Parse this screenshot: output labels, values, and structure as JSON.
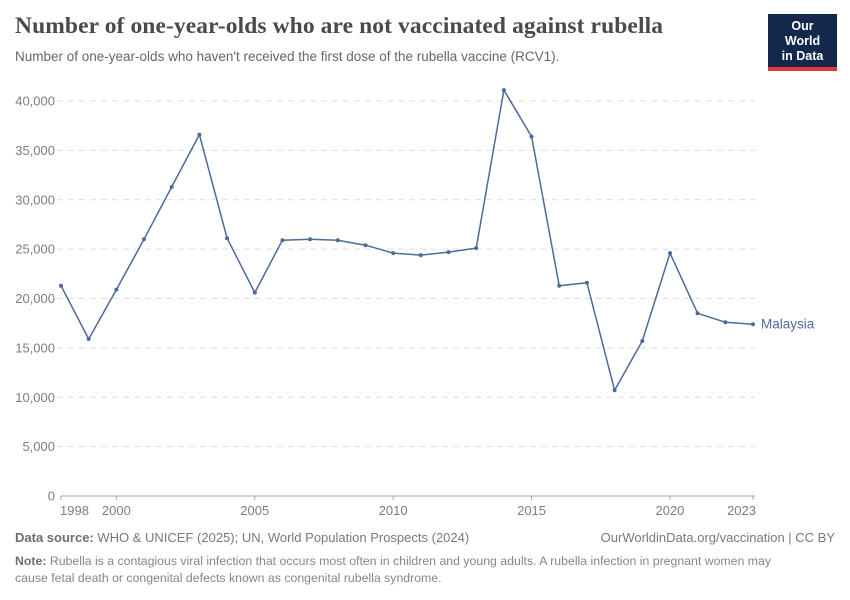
{
  "header": {
    "title": "Number of one-year-olds who are not vaccinated against rubella",
    "subtitle": "Number of one-year-olds who haven't received the first dose of the rubella vaccine (RCV1)."
  },
  "logo": {
    "line1": "Our World",
    "line2": "in Data"
  },
  "colors": {
    "line": "#4C6A9C",
    "grid": "#DEDEDE",
    "axis": "#A3A3A3",
    "tick_label": "#7E7E7E",
    "logo_bg": "#13284C",
    "logo_accent": "#DC3A34"
  },
  "chart_data": {
    "type": "line",
    "title": "Number of one-year-olds who are not vaccinated against rubella",
    "xlabel": "",
    "ylabel": "",
    "x": [
      1998,
      1999,
      2000,
      2001,
      2002,
      2003,
      2004,
      2005,
      2006,
      2007,
      2008,
      2009,
      2010,
      2011,
      2012,
      2013,
      2014,
      2015,
      2016,
      2017,
      2018,
      2019,
      2020,
      2021,
      2022,
      2023
    ],
    "series": [
      {
        "name": "Malaysia",
        "color": "#4C6A9C",
        "values": [
          21300,
          15900,
          20900,
          26000,
          31300,
          36600,
          26100,
          20600,
          25900,
          26000,
          25900,
          25400,
          24600,
          24400,
          24700,
          25100,
          41100,
          36400,
          21300,
          21600,
          10700,
          15700,
          24600,
          18500,
          17600,
          17400
        ]
      }
    ],
    "x_ticks": [
      1998,
      2000,
      2005,
      2010,
      2015,
      2020,
      2023
    ],
    "y_ticks": [
      0,
      5000,
      10000,
      15000,
      20000,
      25000,
      30000,
      35000,
      40000
    ],
    "ylim": [
      0,
      41500
    ],
    "xlim": [
      1998,
      2023
    ],
    "grid": "horizontal-dashed",
    "legend": "end-of-line-label"
  },
  "footer": {
    "source_label": "Data source:",
    "source_text": " WHO & UNICEF (2025); UN, World Population Prospects (2024)",
    "rights": "OurWorldinData.org/vaccination | CC BY",
    "note_label": "Note:",
    "note_text": " Rubella is a contagious viral infection that occurs most often in children and young adults. A rubella infection in pregnant women may cause fetal death or congenital defects known as congenital rubella syndrome."
  }
}
